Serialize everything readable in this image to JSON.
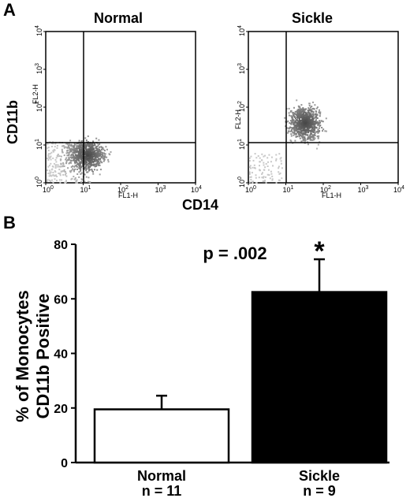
{
  "panel_a": {
    "letter": "A",
    "y_label": "CD11b",
    "x_label": "CD14",
    "plots": [
      {
        "title": "Normal",
        "x_channel": "FL1-H",
        "y_channel": "FL2-H",
        "x_ticks": [
          "10",
          "10",
          "10",
          "10",
          "10"
        ],
        "x_exps": [
          "0",
          "1",
          "2",
          "3",
          "4"
        ],
        "y_ticks": [
          "10",
          "10",
          "10",
          "10",
          "10"
        ],
        "y_exps": [
          "0",
          "1",
          "2",
          "3",
          "4"
        ],
        "cloud_center": [
          1.1,
          0.75
        ]
      },
      {
        "title": "Sickle",
        "x_channel": "FL1-H",
        "y_channel": "FL2-H",
        "x_ticks": [
          "10",
          "10",
          "10",
          "10",
          "10"
        ],
        "x_exps": [
          "0",
          "1",
          "2",
          "3",
          "4"
        ],
        "y_ticks": [
          "10",
          "10",
          "10",
          "10",
          "10"
        ],
        "y_exps": [
          "0",
          "1",
          "2",
          "3",
          "4"
        ],
        "cloud_center": [
          1.5,
          1.6
        ]
      }
    ]
  },
  "panel_b": {
    "letter": "B",
    "annotation": "p = .002",
    "significance_marker": "*"
  },
  "chart_data": {
    "type": "bar",
    "categories": [
      "Normal",
      "Sickle"
    ],
    "sample_sizes": [
      "n = 11",
      "n = 9"
    ],
    "values": [
      19.5,
      62.5
    ],
    "errors": [
      5,
      12
    ],
    "bar_colors": [
      "#ffffff",
      "#000000"
    ],
    "ylabel_line1": "% of Monocytes",
    "ylabel_line2": "CD11b Positive",
    "ylim": [
      0,
      80
    ],
    "yticks": [
      "0",
      "20",
      "40",
      "60",
      "80"
    ]
  }
}
